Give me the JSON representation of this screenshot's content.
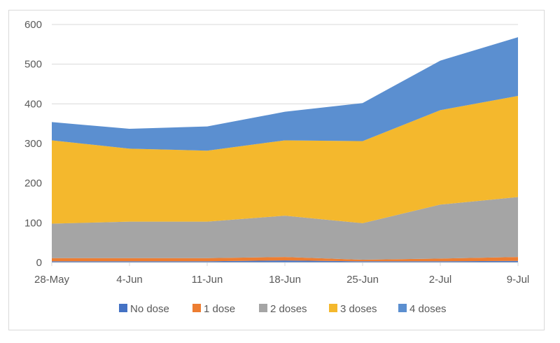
{
  "chart_data": {
    "type": "area",
    "stacked": true,
    "title": "",
    "xlabel": "",
    "ylabel": "",
    "ylim": [
      0,
      600
    ],
    "yticks": [
      0,
      100,
      200,
      300,
      400,
      500,
      600
    ],
    "grid": true,
    "legend_position": "bottom",
    "categories": [
      "28-May",
      "4-Jun",
      "11-Jun",
      "18-Jun",
      "25-Jun",
      "2-Jul",
      "9-Jul"
    ],
    "series": [
      {
        "name": "No dose",
        "color": "#4472c4",
        "values": [
          3,
          3,
          3,
          5,
          3,
          3,
          4
        ]
      },
      {
        "name": "1 dose",
        "color": "#ed7d31",
        "values": [
          8,
          8,
          8,
          9,
          4,
          7,
          10
        ]
      },
      {
        "name": "2 doses",
        "color": "#a5a5a5",
        "values": [
          87,
          92,
          92,
          104,
          92,
          136,
          151
        ]
      },
      {
        "name": "3 doses",
        "color": "#f4b82d",
        "values": [
          210,
          184,
          179,
          190,
          207,
          238,
          255
        ]
      },
      {
        "name": "4 doses",
        "color": "#5b8fd0",
        "values": [
          46,
          50,
          61,
          72,
          96,
          125,
          148
        ]
      }
    ]
  }
}
